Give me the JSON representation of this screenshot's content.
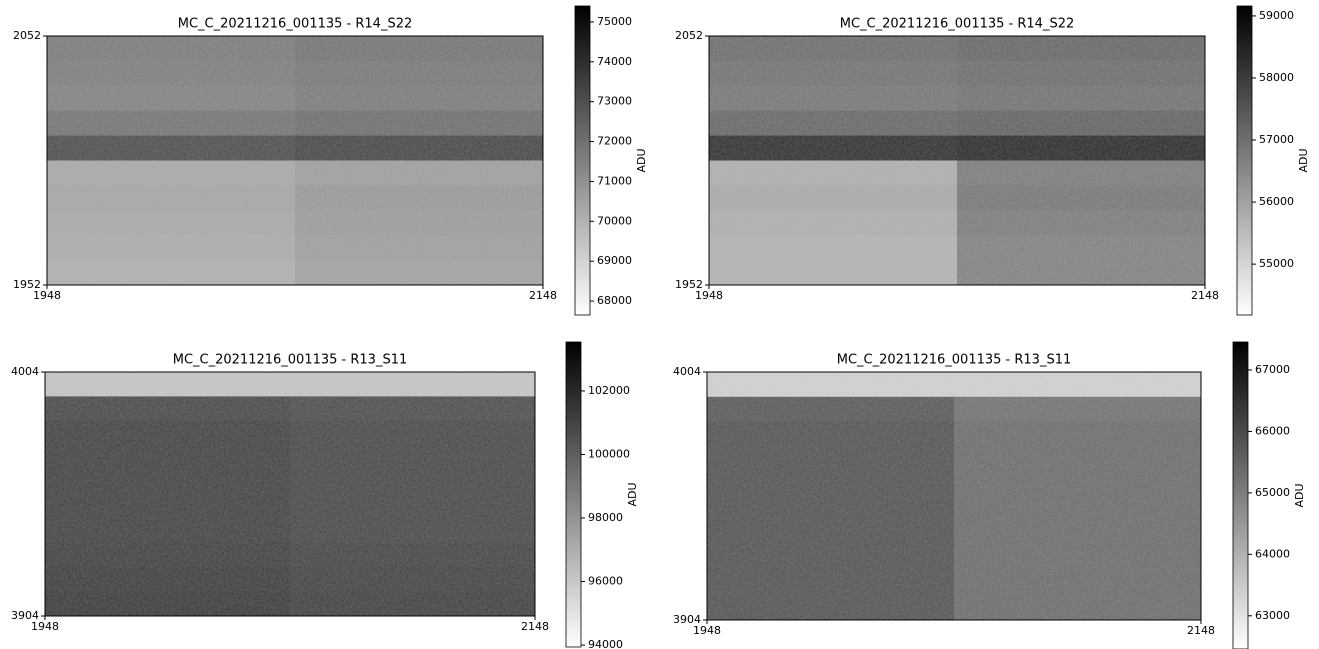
{
  "chart_data": [
    {
      "type": "image",
      "title": "MC_C_20211216_001135 - R14_S22",
      "xlim": [
        1948,
        2148
      ],
      "ylim": [
        1952,
        2052
      ],
      "xticks": [
        1948,
        2148
      ],
      "yticks": [
        2052,
        1952
      ],
      "z": [
        [
          71600,
          71800
        ],
        [
          71500,
          71700
        ],
        [
          71400,
          71600
        ],
        [
          71800,
          72000
        ],
        [
          73000,
          73200
        ],
        [
          70200,
          70500
        ],
        [
          70300,
          70700
        ],
        [
          70200,
          70600
        ],
        [
          70100,
          70500
        ],
        [
          70000,
          70400
        ]
      ],
      "colorbar": {
        "label": "ADU",
        "lim": [
          67650,
          75400
        ],
        "ticks": [
          68000,
          69000,
          70000,
          71000,
          72000,
          73000,
          74000,
          75000
        ]
      }
    },
    {
      "type": "image",
      "title": "MC_C_20211216_001135 - R14_S22",
      "xlim": [
        1948,
        2148
      ],
      "ylim": [
        1952,
        2052
      ],
      "xticks": [
        1948,
        2148
      ],
      "yticks": [
        2052,
        1952
      ],
      "z": [
        [
          57000,
          57100
        ],
        [
          56900,
          57000
        ],
        [
          56800,
          56900
        ],
        [
          57100,
          57200
        ],
        [
          58200,
          58300
        ],
        [
          55700,
          56700
        ],
        [
          55800,
          56800
        ],
        [
          55700,
          56700
        ],
        [
          55600,
          56600
        ],
        [
          55600,
          56600
        ]
      ],
      "colorbar": {
        "label": "ADU",
        "lim": [
          54180,
          59160
        ],
        "ticks": [
          55000,
          56000,
          57000,
          58000,
          59000
        ]
      }
    },
    {
      "type": "image",
      "title": "MC_C_20211216_001135 - R13_S11",
      "xlim": [
        1948,
        2148
      ],
      "ylim": [
        3904,
        4004
      ],
      "xticks": [
        1948,
        2148
      ],
      "yticks": [
        4004,
        3904
      ],
      "z": [
        [
          96000,
          96000
        ],
        [
          100800,
          100600
        ],
        [
          101000,
          100800
        ],
        [
          101000,
          100800
        ],
        [
          101000,
          100800
        ],
        [
          101000,
          100800
        ],
        [
          101000,
          100800
        ],
        [
          101100,
          100900
        ],
        [
          101200,
          101000
        ],
        [
          101300,
          101100
        ]
      ],
      "colorbar": {
        "label": "ADU",
        "lim": [
          93940,
          103540
        ],
        "ticks": [
          94000,
          96000,
          98000,
          100000,
          102000
        ]
      }
    },
    {
      "type": "image",
      "title": "MC_C_20211216_001135 - R13_S11",
      "xlim": [
        1948,
        2148
      ],
      "ylim": [
        3904,
        4004
      ],
      "xticks": [
        1948,
        2148
      ],
      "yticks": [
        4004,
        3904
      ],
      "z": [
        [
          63300,
          63300
        ],
        [
          65700,
          65200
        ],
        [
          65800,
          65300
        ],
        [
          65800,
          65300
        ],
        [
          65800,
          65300
        ],
        [
          65800,
          65300
        ],
        [
          65800,
          65300
        ],
        [
          65800,
          65300
        ],
        [
          65800,
          65300
        ],
        [
          65800,
          65300
        ]
      ],
      "colorbar": {
        "label": "ADU",
        "lim": [
          62460,
          67455
        ],
        "ticks": [
          63000,
          64000,
          65000,
          66000,
          67000
        ]
      }
    }
  ]
}
